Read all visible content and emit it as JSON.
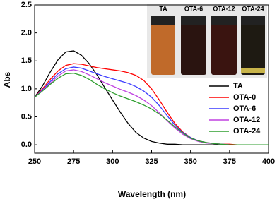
{
  "chart_data": {
    "type": "line",
    "x_label": "Wavelength (nm)",
    "y_label": "Abs",
    "x": [
      250,
      255,
      260,
      265,
      270,
      275,
      280,
      285,
      290,
      295,
      300,
      305,
      310,
      315,
      320,
      325,
      330,
      335,
      340,
      345,
      350,
      355,
      360,
      365,
      370,
      375,
      380,
      385,
      390,
      395,
      400
    ],
    "series": [
      {
        "name": "TA",
        "color": "#000000",
        "values": [
          0.85,
          1.05,
          1.3,
          1.52,
          1.66,
          1.68,
          1.6,
          1.45,
          1.25,
          1.02,
          0.8,
          0.58,
          0.38,
          0.22,
          0.12,
          0.06,
          0.03,
          0.01,
          0.01,
          0,
          0,
          0,
          0,
          0,
          0,
          0,
          0,
          0,
          0,
          0,
          0
        ]
      },
      {
        "name": "OTA-0",
        "color": "#ff0000",
        "values": [
          0.85,
          1.0,
          1.17,
          1.32,
          1.42,
          1.45,
          1.44,
          1.41,
          1.38,
          1.36,
          1.34,
          1.32,
          1.29,
          1.24,
          1.15,
          1.0,
          0.8,
          0.58,
          0.38,
          0.23,
          0.13,
          0.07,
          0.04,
          0.02,
          0.01,
          0.01,
          0,
          0,
          0,
          0,
          0
        ]
      },
      {
        "name": "OTA-6",
        "color": "#3a3aff",
        "values": [
          0.85,
          0.98,
          1.13,
          1.27,
          1.36,
          1.39,
          1.37,
          1.32,
          1.27,
          1.22,
          1.18,
          1.14,
          1.1,
          1.04,
          0.96,
          0.85,
          0.7,
          0.52,
          0.35,
          0.22,
          0.13,
          0.07,
          0.04,
          0.02,
          0.01,
          0,
          0,
          0,
          0,
          0,
          0
        ]
      },
      {
        "name": "OTA-12",
        "color": "#c040e0",
        "values": [
          0.85,
          0.97,
          1.1,
          1.23,
          1.32,
          1.34,
          1.31,
          1.25,
          1.18,
          1.11,
          1.05,
          0.99,
          0.94,
          0.88,
          0.8,
          0.7,
          0.57,
          0.43,
          0.3,
          0.19,
          0.11,
          0.06,
          0.03,
          0.02,
          0.01,
          0,
          0,
          0,
          0,
          0,
          0
        ]
      },
      {
        "name": "OTA-24",
        "color": "#2e9e2e",
        "values": [
          0.85,
          0.96,
          1.08,
          1.19,
          1.27,
          1.28,
          1.24,
          1.17,
          1.08,
          1.0,
          0.93,
          0.87,
          0.82,
          0.77,
          0.71,
          0.64,
          0.55,
          0.44,
          0.32,
          0.21,
          0.12,
          0.07,
          0.04,
          0.02,
          0.01,
          0,
          0,
          0,
          0,
          0,
          0
        ]
      }
    ],
    "xlim": [
      250,
      400
    ],
    "xticks": [
      250,
      275,
      300,
      325,
      350,
      375,
      400
    ],
    "ylim": [
      -0.15,
      2.5
    ],
    "yticks": [
      {
        "value": 0,
        "label": "0.0"
      },
      {
        "value": 0.5,
        "label": "0.5"
      },
      {
        "value": 1,
        "label": "1.0"
      },
      {
        "value": 1.5,
        "label": "1.5"
      },
      {
        "value": 2,
        "label": "2.0"
      },
      {
        "value": 2.5,
        "label": "2.5"
      }
    ],
    "inset_labels": [
      "TA",
      "OTA-6",
      "OTA-12",
      "OTA-24"
    ]
  }
}
